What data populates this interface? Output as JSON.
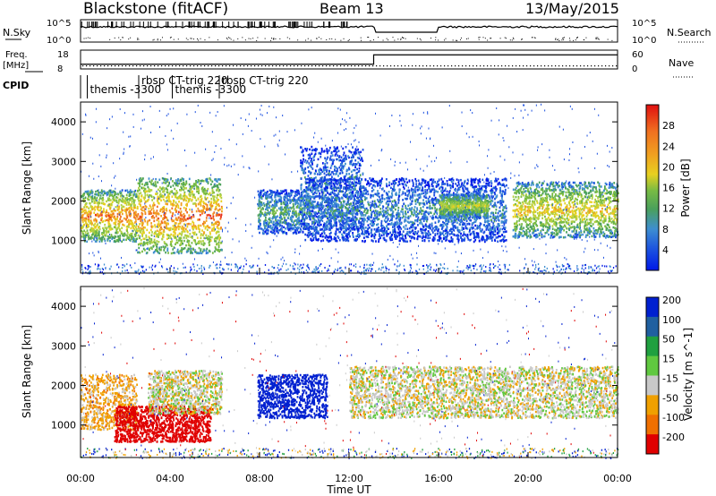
{
  "header": {
    "station": "Blackstone (fitACF)",
    "beam": "Beam 13",
    "date": "13/May/2015"
  },
  "status_panel": {
    "nsky_label": "N.Sky",
    "freq_label_line1": "Freq.",
    "freq_label_line2": "[MHz]",
    "cpid_label": "CPID",
    "nsearch_label": "N.Search",
    "nave_label": "Nave",
    "nsky_ticks": [
      "10^5",
      "10^0"
    ],
    "freq_ticks": [
      "18",
      "8"
    ],
    "right_top_ticks": [
      "10^5",
      "10^0"
    ],
    "right_nave_ticks": [
      "60",
      "0"
    ],
    "cpid_entries": [
      {
        "text": "themis -3300",
        "start_hour": 0.3,
        "row": 2
      },
      {
        "text": "rbsp CT-trig 220",
        "start_hour": 2.6,
        "row": 1
      },
      {
        "text": "themis -3300",
        "start_hour": 4.1,
        "row": 2
      },
      {
        "text": "rbsp CT-trig 220",
        "start_hour": 6.2,
        "row": 1
      }
    ],
    "freq_step_hour": 13.1,
    "freq_before_mhz": 10.5,
    "freq_after_mhz": 15.5
  },
  "chart_data": [
    {
      "type": "heatmap",
      "panel": "power",
      "ylabel": "Slant Range [km]",
      "ylim": [
        180,
        4500
      ],
      "yticks": [
        "1000",
        "2000",
        "3000",
        "4000"
      ],
      "colorbar_label": "Power [dB]",
      "colorbar_ticks": [
        "4",
        "8",
        "12",
        "16",
        "20",
        "24",
        "28"
      ],
      "colorscale": [
        "#0018e8",
        "#1a4fe0",
        "#3e8ed0",
        "#4aa05c",
        "#77bb44",
        "#b0d040",
        "#e8d020",
        "#f0a020",
        "#f07020",
        "#e83018",
        "#cc0000"
      ],
      "regions": [
        {
          "t0": 0.0,
          "t1": 2.5,
          "r0": 1000,
          "r1": 2300,
          "mean_db": 17
        },
        {
          "t0": 2.5,
          "t1": 6.3,
          "r0": 700,
          "r1": 2600,
          "mean_db": 18
        },
        {
          "t0": 7.9,
          "t1": 10.0,
          "r0": 1200,
          "r1": 2300,
          "mean_db": 8
        },
        {
          "t0": 9.8,
          "t1": 12.6,
          "r0": 1300,
          "r1": 3400,
          "mean_db": 6
        },
        {
          "t0": 10.0,
          "t1": 19.0,
          "r0": 1000,
          "r1": 2600,
          "mean_db": 6
        },
        {
          "t0": 16.0,
          "t1": 18.2,
          "r0": 1600,
          "r1": 2200,
          "mean_db": 12
        },
        {
          "t0": 19.3,
          "t1": 24.0,
          "r0": 1100,
          "r1": 2500,
          "mean_db": 14
        }
      ]
    },
    {
      "type": "heatmap",
      "panel": "velocity",
      "xlabel": "Time UT",
      "ylabel": "Slant Range [km]",
      "ylim": [
        180,
        4500
      ],
      "yticks": [
        "1000",
        "2000",
        "3000",
        "4000"
      ],
      "xticks": [
        "00:00",
        "04:00",
        "08:00",
        "12:00",
        "16:00",
        "20:00",
        "00:00"
      ],
      "x_hours": [
        0,
        4,
        8,
        12,
        16,
        20,
        24
      ],
      "colorbar_label": "Velocity [m s^-1]",
      "colorbar_ticks": [
        "200",
        "100",
        "50",
        "15",
        "-15",
        "-50",
        "-100",
        "-200"
      ],
      "colorscale": [
        "#0020d0",
        "#2060a0",
        "#20a040",
        "#60c840",
        "#c8c8c8",
        "#f0a000",
        "#f07000",
        "#e00000"
      ],
      "regions": [
        {
          "t0": 0.0,
          "t1": 2.5,
          "r0": 900,
          "r1": 2300,
          "mean_velocity": -30
        },
        {
          "t0": 1.5,
          "t1": 5.8,
          "r0": 600,
          "r1": 1500,
          "mean_velocity": -200
        },
        {
          "t0": 3.0,
          "t1": 6.3,
          "r0": 1300,
          "r1": 2400,
          "mean_velocity": 0
        },
        {
          "t0": 7.9,
          "t1": 11.0,
          "r0": 1200,
          "r1": 2300,
          "mean_velocity": 200
        },
        {
          "t0": 12.0,
          "t1": 24.0,
          "r0": 1200,
          "r1": 2500,
          "mean_velocity": 0
        }
      ]
    }
  ]
}
